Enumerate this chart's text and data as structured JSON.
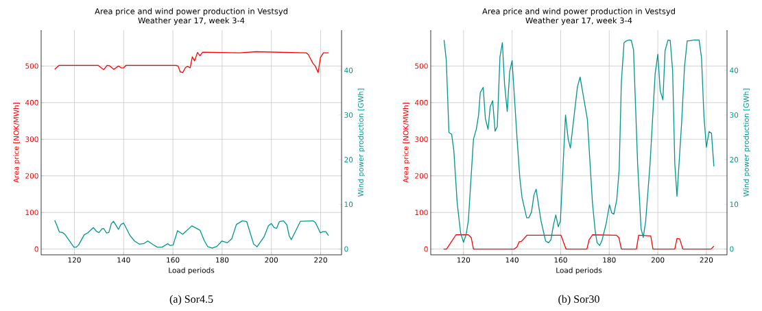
{
  "chart_data": [
    {
      "type": "line",
      "title": "Area price and wind power production in Vestsyd",
      "subtitle": "Weather year 17, week 3-4",
      "xlabel": "Load periods",
      "ylabel": "Area price [NOK/MWh]",
      "y2label": "Wind power production [GWh]",
      "annotations": [
        "(a) Sor4.5"
      ],
      "grid": true,
      "marker": "none",
      "line_style": "solid",
      "xlim": [
        106.5,
        228.5
      ],
      "ylim": [
        -15.7,
        598
      ],
      "y2lim": [
        -1.3,
        49
      ],
      "xticks": [
        120,
        140,
        160,
        180,
        200,
        220
      ],
      "yticks": [
        0,
        100,
        200,
        300,
        400,
        500
      ],
      "y2ticks": [
        0,
        10,
        20,
        30,
        40
      ],
      "series": [
        {
          "color": "#ff0000",
          "x": [
            112,
            113.8,
            129.6,
            131.9,
            133.3,
            134.2,
            136,
            137.9,
            139,
            140,
            141,
            161.2,
            162.1,
            163,
            164,
            165.1,
            166,
            167,
            167.9,
            168.8,
            170,
            171,
            172.1,
            187.2,
            193.7,
            214.1,
            215,
            216.9,
            217.8,
            219,
            219.9,
            221.1,
            223.2
          ],
          "values": [
            491,
            502,
            502,
            490,
            502,
            501,
            491,
            500,
            495,
            495,
            502,
            502,
            500,
            484,
            482,
            496,
            499,
            495,
            525,
            514,
            537,
            528,
            538,
            536,
            539,
            536,
            531,
            507,
            500,
            482,
            523,
            536,
            536
          ]
        },
        {
          "color": "#00968a",
          "axis": "y2",
          "x": [
            112,
            112.8,
            113.9,
            115.2,
            116.1,
            119.8,
            120.7,
            121.7,
            124,
            125.4,
            127.7,
            129.1,
            130,
            131.2,
            131.9,
            133,
            134,
            135,
            135.9,
            137.9,
            138.9,
            140,
            142.6,
            144.4,
            146.3,
            148.1,
            149.8,
            151.9,
            153.7,
            155.6,
            157.9,
            158.8,
            160.1,
            161.9,
            164,
            167.7,
            171,
            172.8,
            174.2,
            176,
            177.9,
            179.9,
            182.1,
            183.9,
            185.8,
            188.2,
            190,
            192.8,
            194.2,
            197,
            198.8,
            200,
            201.1,
            202.1,
            203.2,
            204.9,
            206.3,
            207.2,
            208.1,
            211.8,
            217,
            217.9,
            219.9,
            220.9,
            222.1,
            223.2
          ],
          "values": [
            6.4,
            5.4,
            3.8,
            3.7,
            3.3,
            0.4,
            0.4,
            0.9,
            3.2,
            3.6,
            4.8,
            3.9,
            3.7,
            4.5,
            4.6,
            3.6,
            3.7,
            5.7,
            6.2,
            4.4,
            5.5,
            5.8,
            3.0,
            1.8,
            1.1,
            1.2,
            1.8,
            1.0,
            0.4,
            0.4,
            1.2,
            0.8,
            0.9,
            4.1,
            3.3,
            5.2,
            4.2,
            1.8,
            0.5,
            0.2,
            0.6,
            1.8,
            1.4,
            2.3,
            5.5,
            6.3,
            6.1,
            1.1,
            0.5,
            2.7,
            5.2,
            5.7,
            4.8,
            4.6,
            6.1,
            6.3,
            5.4,
            3.0,
            2.1,
            6.2,
            6.3,
            5.9,
            3.6,
            3.9,
            3.9,
            3.0
          ]
        }
      ]
    },
    {
      "type": "line",
      "title": "Area price and wind power production in Vestsyd",
      "subtitle": "Weather year 17, week 3-4",
      "xlabel": "Load periods",
      "ylabel": "Area price [NOK/MWh]",
      "y2label": "Wind power production [GWh]",
      "annotations": [
        "(b) Sor30"
      ],
      "grid": true,
      "marker": "none",
      "line_style": "solid",
      "xlim": [
        106.5,
        228.5
      ],
      "ylim": [
        -15.7,
        598
      ],
      "y2lim": [
        -1.3,
        49
      ],
      "xticks": [
        120,
        140,
        160,
        180,
        200,
        220
      ],
      "yticks": [
        0,
        100,
        200,
        300,
        400,
        500
      ],
      "y2ticks": [
        0,
        10,
        20,
        30,
        40
      ],
      "series": [
        {
          "color": "#ff0000",
          "x": [
            111.8,
            113,
            114.6,
            116.9,
            122,
            123.2,
            124.1,
            140.9,
            142,
            142.9,
            143.8,
            146.2,
            160.1,
            162.2,
            170.8,
            171.7,
            173.1,
            182.9,
            184,
            185,
            191.2,
            192.1,
            197.1,
            198,
            207,
            207.9,
            209,
            210.3,
            221.9,
            223.1
          ],
          "values": [
            0,
            0,
            16,
            39,
            39,
            31,
            0,
            0,
            6,
            20,
            21,
            38,
            38,
            0,
            0,
            25,
            39,
            38,
            31,
            0,
            0,
            38,
            36,
            0,
            0,
            29,
            28,
            0,
            0,
            8
          ]
        },
        {
          "color": "#00968a",
          "axis": "y2",
          "x": [
            112,
            112.9,
            114,
            115.1,
            116,
            117.4,
            118.8,
            120,
            121.1,
            122,
            124.1,
            125.3,
            126.2,
            126.9,
            128.1,
            129,
            130.1,
            131,
            132,
            133,
            133.9,
            135,
            136,
            136.9,
            138,
            139,
            140,
            142,
            143.2,
            144.1,
            146,
            146.9,
            148,
            149,
            149.9,
            151.9,
            153.8,
            155,
            156,
            157,
            158,
            159,
            159.9,
            162,
            163.1,
            164,
            166.9,
            168,
            171,
            173.1,
            174.2,
            175,
            176.1,
            177,
            178.7,
            180.1,
            181,
            181.9,
            183.1,
            184.1,
            185,
            186.1,
            187.1,
            188.2,
            189.1,
            190,
            191.7,
            193.1,
            194,
            195,
            196.8,
            198.9,
            200,
            201,
            202.1,
            203,
            204.2,
            205.1,
            206.1,
            207,
            207.9,
            209.8,
            211,
            212.1,
            213,
            214.9,
            217,
            218,
            219,
            220,
            221.1,
            222.1,
            223.1
          ],
          "values": [
            46.8,
            42.3,
            26.1,
            25.7,
            22.1,
            10.3,
            3.6,
            1.5,
            3.3,
            6.4,
            24.6,
            26.9,
            30,
            35,
            36.2,
            29.2,
            26.8,
            31.9,
            33.2,
            26.4,
            27.4,
            43,
            46.2,
            36.9,
            30.8,
            39.7,
            42.2,
            25.1,
            15.8,
            11.5,
            7.0,
            7.0,
            8.3,
            12.1,
            13.4,
            6.3,
            1.8,
            1.4,
            2.1,
            5.3,
            7.6,
            5.0,
            6.3,
            30,
            24.6,
            22.6,
            36.3,
            38.5,
            29,
            10.3,
            4.1,
            1.4,
            0.8,
            1.9,
            5.6,
            9.9,
            8.1,
            7.8,
            11,
            17.9,
            37.4,
            46.2,
            46.6,
            46.8,
            46.7,
            44.6,
            19,
            4.6,
            2.6,
            6.2,
            19,
            39.2,
            43.6,
            35.4,
            33.4,
            44.4,
            46.8,
            46.7,
            40,
            19,
            11.8,
            28.2,
            40.8,
            46.6,
            46.6,
            46.8,
            46.8,
            42.8,
            29.7,
            22.8,
            26.3,
            25.9,
            18.5
          ]
        }
      ]
    }
  ]
}
